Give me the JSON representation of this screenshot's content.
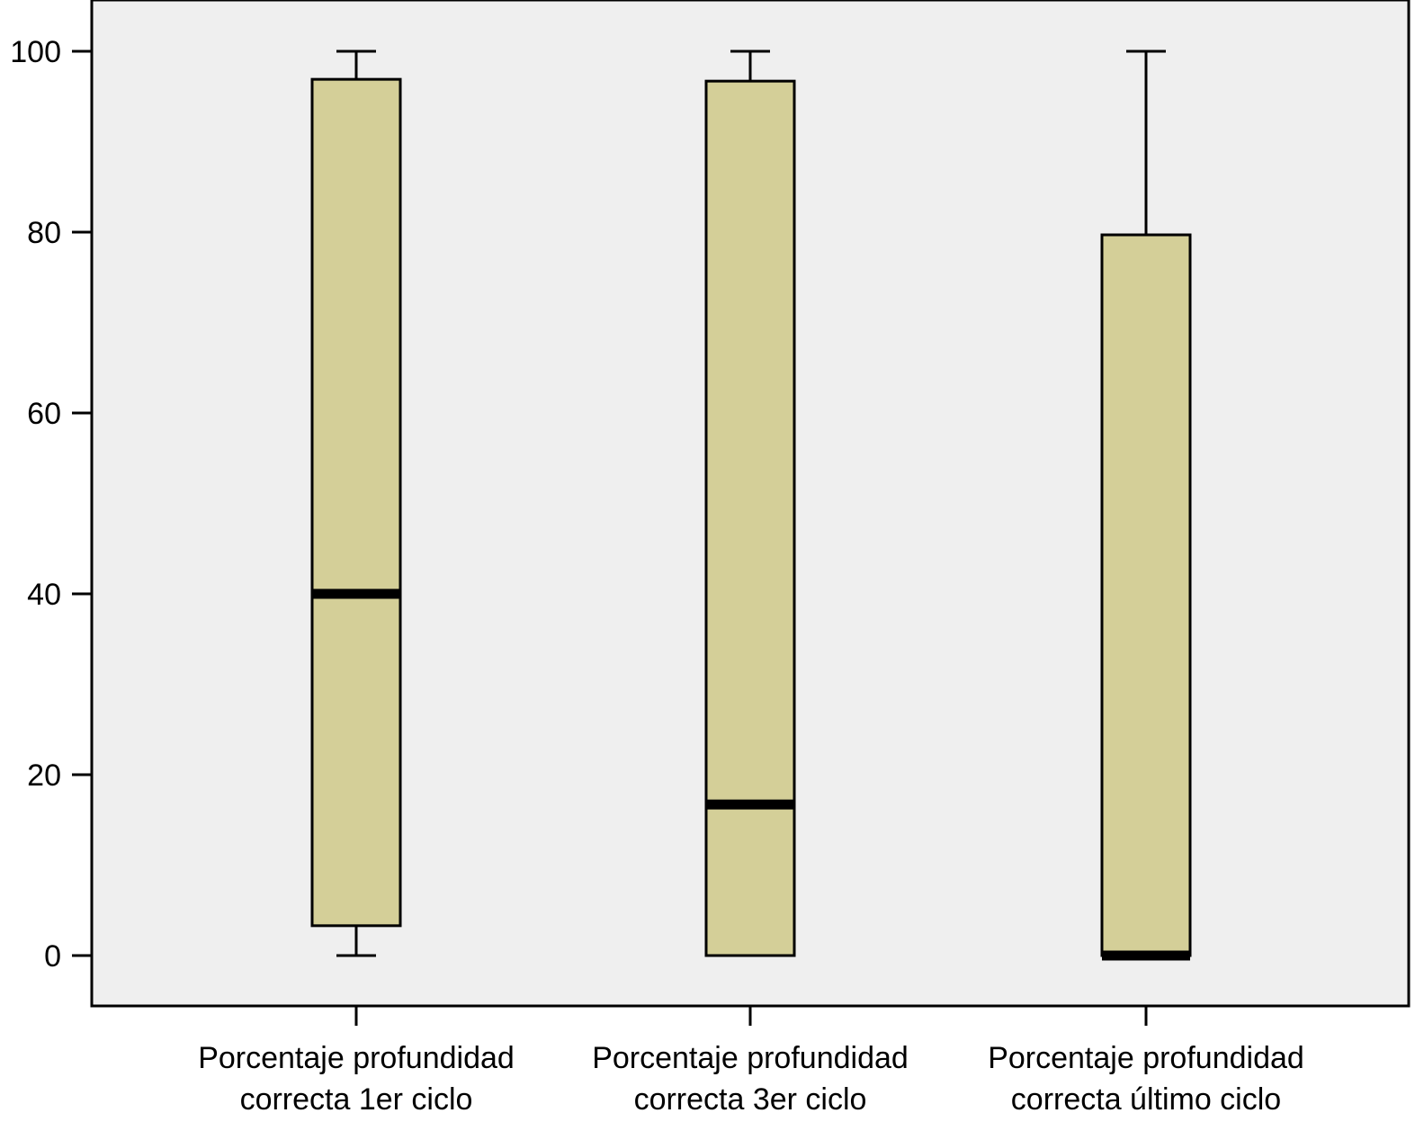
{
  "chart_data": {
    "type": "box",
    "categories": [
      "Porcentaje profundidad correcta 1er ciclo",
      "Porcentaje profundidad correcta 3er ciclo",
      "Porcentaje profundidad correcta último ciclo"
    ],
    "category_label_lines": [
      [
        "Porcentaje profundidad",
        "correcta 1er ciclo"
      ],
      [
        "Porcentaje profundidad",
        "correcta 3er ciclo"
      ],
      [
        "Porcentaje profundidad",
        "correcta último ciclo"
      ]
    ],
    "boxes": [
      {
        "min": 0,
        "q1": 3.3,
        "median": 40,
        "q3": 96.9,
        "max": 100
      },
      {
        "min": 0,
        "q1": 0,
        "median": 16.7,
        "q3": 96.7,
        "max": 100
      },
      {
        "min": 0,
        "q1": 0,
        "median": 0,
        "q3": 79.7,
        "max": 100
      }
    ],
    "yticks": [
      0,
      20,
      40,
      60,
      80,
      100
    ],
    "ylim": [
      -5.5,
      105.5
    ],
    "title": "",
    "xlabel": "",
    "ylabel": "",
    "grid": false,
    "colors": {
      "plot_background": "#efefef",
      "box_fill": "#d4cf98",
      "line": "#000000"
    }
  }
}
